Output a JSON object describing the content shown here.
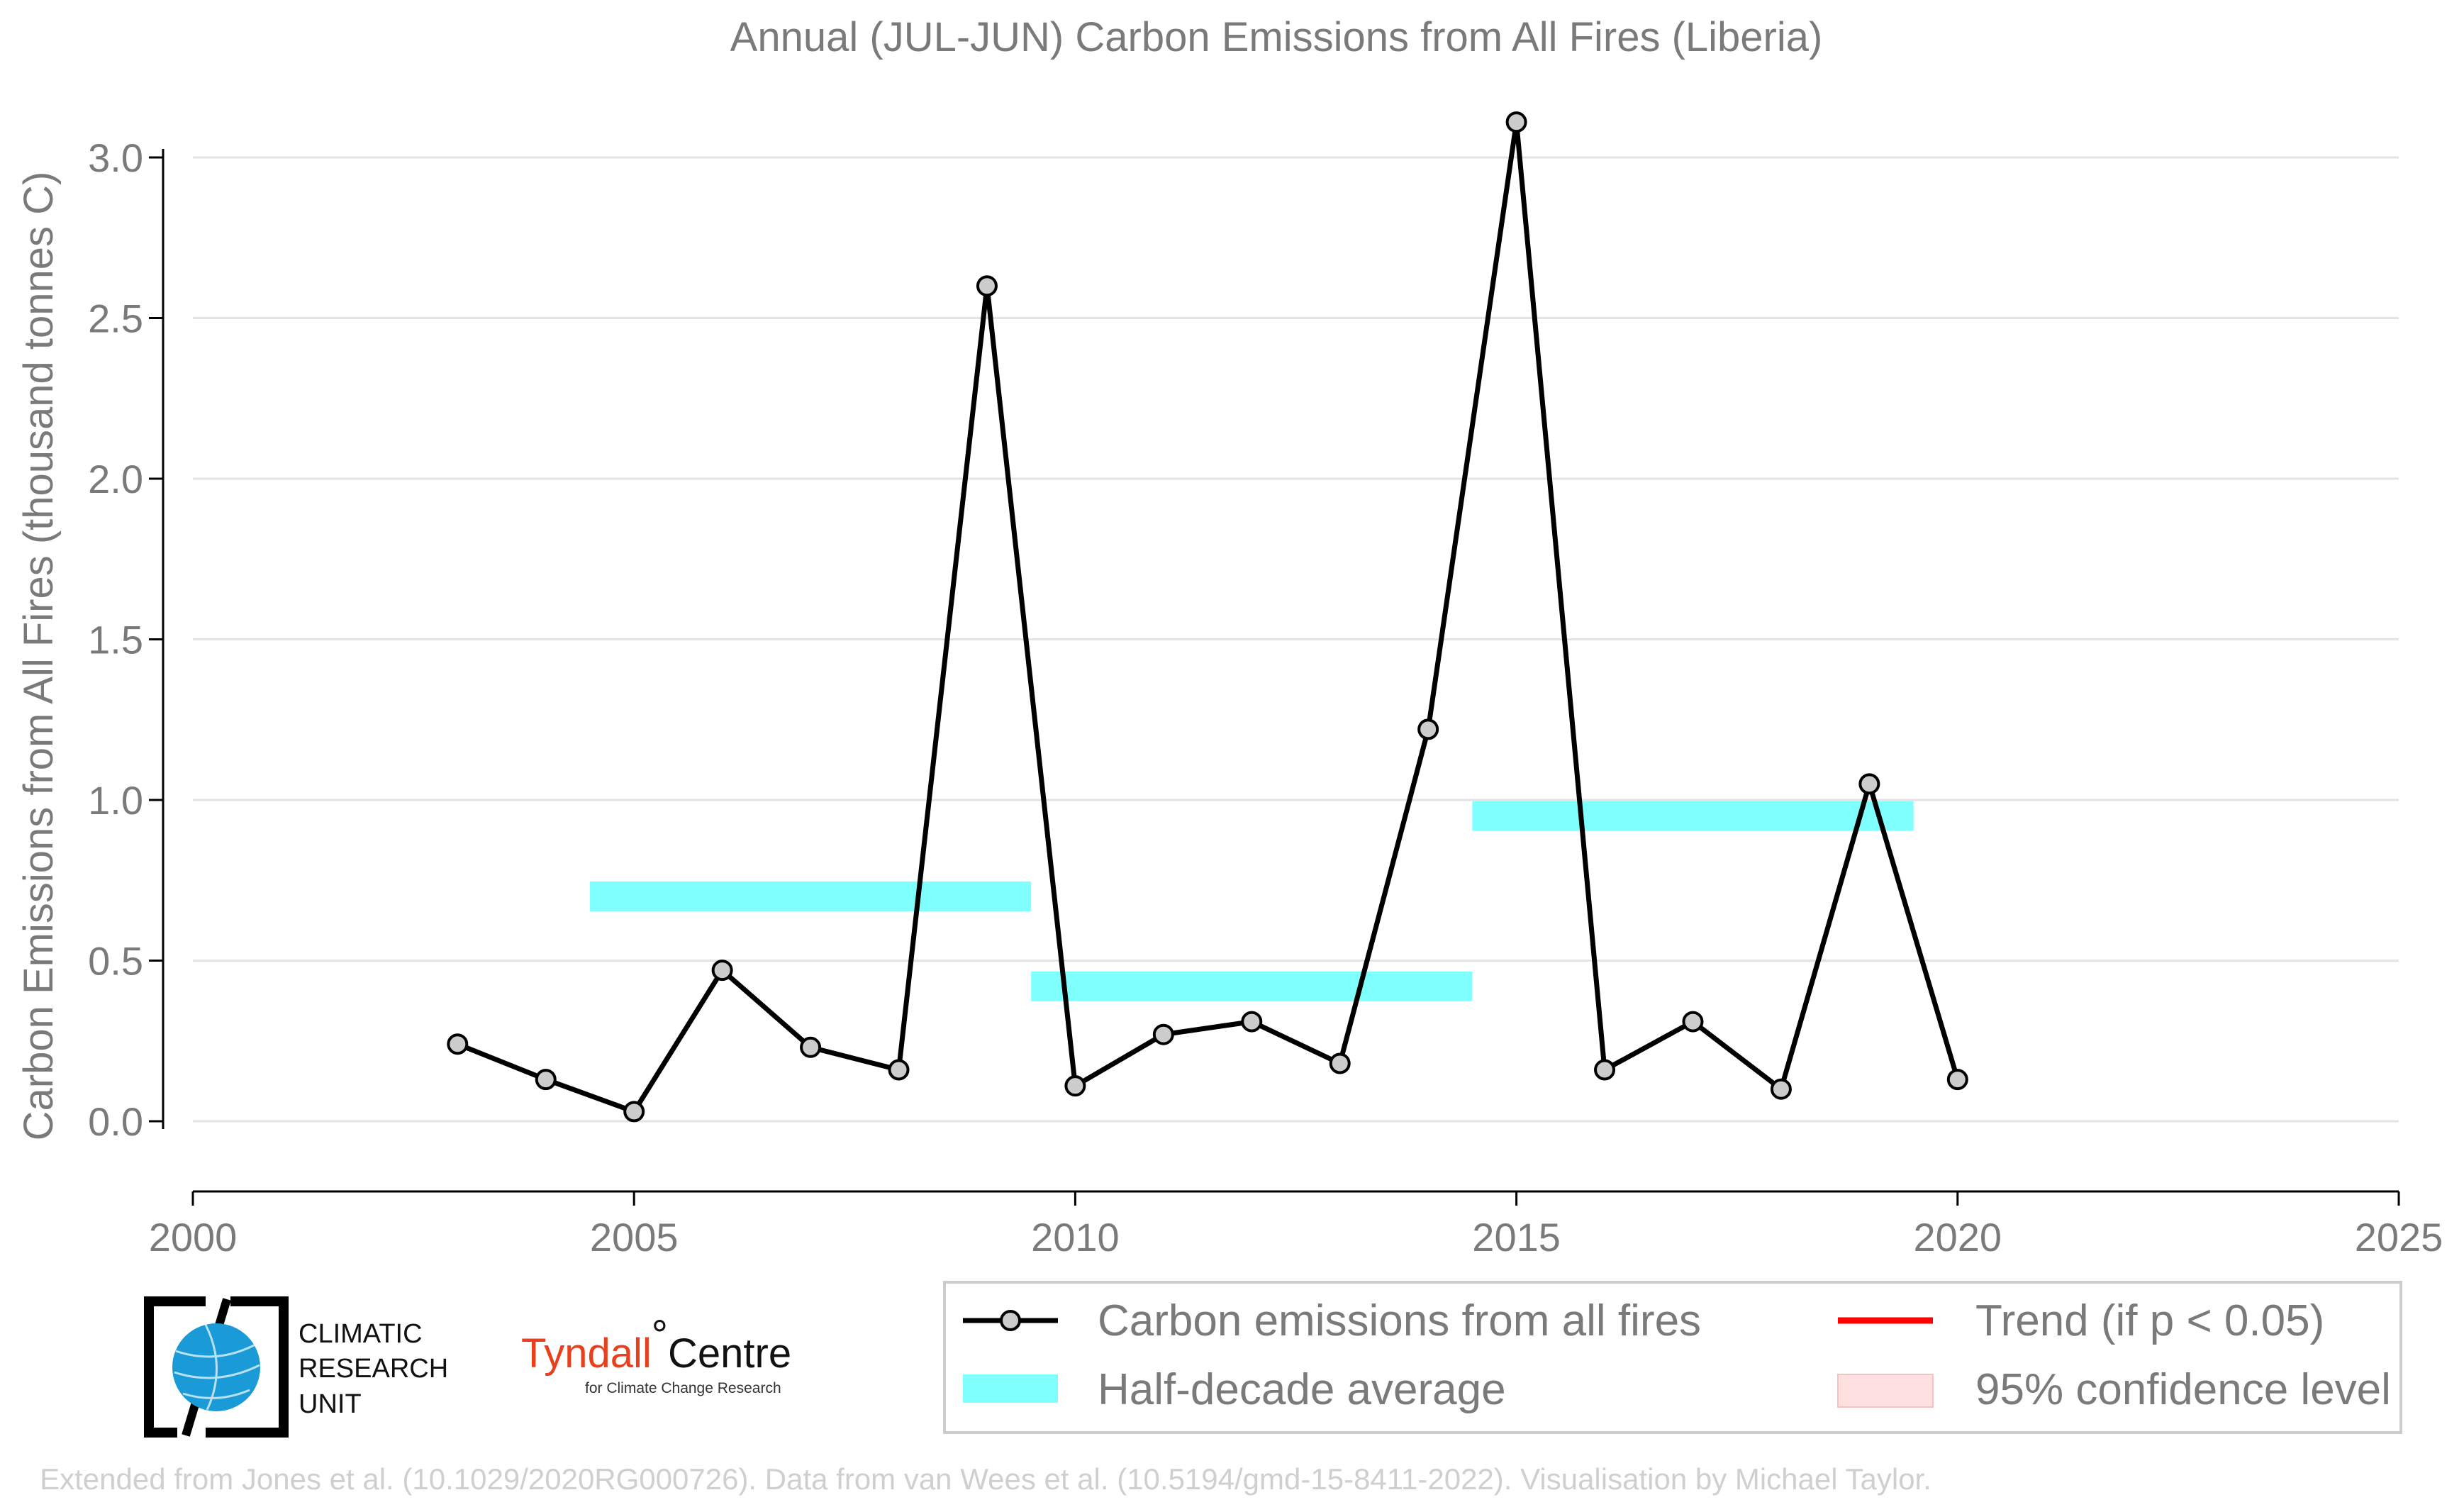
{
  "chart_data": {
    "type": "line",
    "title": "Annual (JUL-JUN) Carbon Emissions from All Fires (Liberia)",
    "xlabel": "",
    "ylabel": "Carbon Emissions from All Fires (thousand tonnes C)",
    "xlim": [
      2000,
      2025
    ],
    "ylim": [
      -0.14,
      3.16
    ],
    "x_ticks": [
      "2000",
      "2005",
      "2010",
      "2015",
      "2020",
      "2025"
    ],
    "y_ticks": [
      "0.0",
      "0.5",
      "1.0",
      "1.5",
      "2.0",
      "2.5",
      "3.0"
    ],
    "grid": "horizontal",
    "legend_position": "bottom-right",
    "series": [
      {
        "name": "Carbon emissions from all fires",
        "color": "#000000",
        "x": [
          2003,
          2004,
          2005,
          2006,
          2007,
          2008,
          2009,
          2010,
          2011,
          2012,
          2013,
          2014,
          2015,
          2016,
          2017,
          2018,
          2019,
          2020
        ],
        "values": [
          0.24,
          0.13,
          0.03,
          0.47,
          0.23,
          0.16,
          2.6,
          0.11,
          0.27,
          0.31,
          0.18,
          1.22,
          3.11,
          0.16,
          0.31,
          0.1,
          1.05,
          0.13
        ]
      }
    ],
    "half_decade_averages": [
      {
        "x_start": 2004.5,
        "x_end": 2009.5,
        "value": 0.7
      },
      {
        "x_start": 2009.5,
        "x_end": 2014.5,
        "value": 0.42
      },
      {
        "x_start": 2014.5,
        "x_end": 2019.5,
        "value": 0.95
      }
    ],
    "half_decade_color": "#80ffff",
    "legend": [
      {
        "label": "Carbon emissions from all fires",
        "kind": "line-marker",
        "color": "#000000"
      },
      {
        "label": "Half-decade average",
        "kind": "band",
        "color": "#80ffff"
      },
      {
        "label": "Trend (if p < 0.05)",
        "kind": "line",
        "color": "#ff0000"
      },
      {
        "label": "95% confidence level",
        "kind": "patch",
        "color": "#ffe0e0"
      }
    ]
  },
  "logos": {
    "cru_lines": [
      "CLIMATIC",
      "RESEARCH",
      "UNIT"
    ],
    "tyndall_main": "Tyndall",
    "tyndall_degree": "°",
    "tyndall_centre": "Centre",
    "tyndall_sub": "for Climate Change Research"
  },
  "credit": "Extended from Jones et al. (10.1029/2020RG000726). Data from van Wees et al. (10.5194/gmd-15-8411-2022). Visualisation by Michael Taylor."
}
